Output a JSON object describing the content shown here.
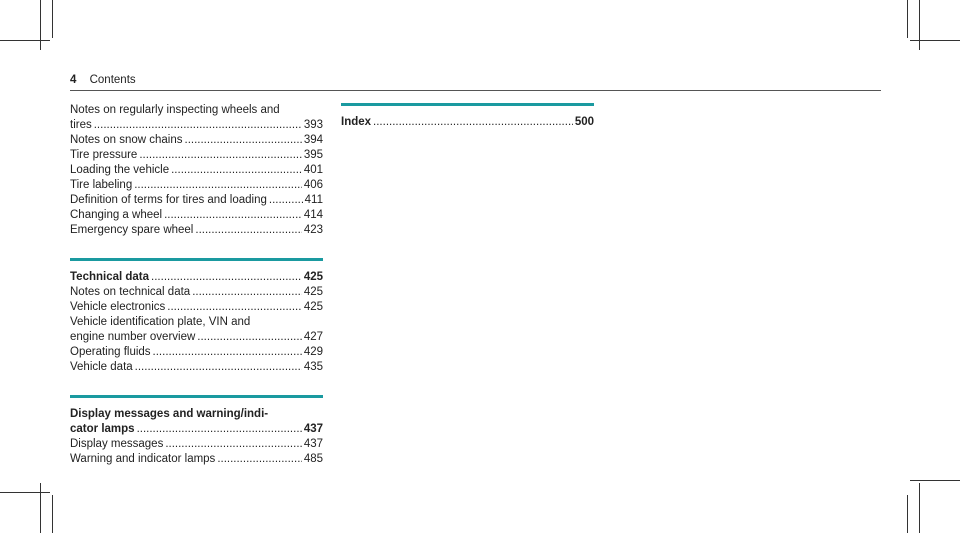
{
  "header": {
    "page_number": "4",
    "title": "Contents"
  },
  "left_column": {
    "intro_entries": [
      {
        "lines": [
          "Notes on regularly inspecting wheels and"
        ],
        "last": "tires",
        "page": "393"
      },
      {
        "lines": [],
        "last": "Notes on snow chains",
        "page": "394"
      },
      {
        "lines": [],
        "last": "Tire pressure",
        "page": "395"
      },
      {
        "lines": [],
        "last": "Loading the vehicle",
        "page": "401"
      },
      {
        "lines": [],
        "last": "Tire labeling",
        "page": "406"
      },
      {
        "lines": [],
        "last": "Definition of terms for tires and loading",
        "page": "411"
      },
      {
        "lines": [],
        "last": "Changing a wheel",
        "page": "414"
      },
      {
        "lines": [],
        "last": "Emergency spare wheel",
        "page": "423"
      }
    ],
    "technical": {
      "title": "Technical data",
      "page": "425",
      "entries": [
        {
          "lines": [],
          "last": "Notes on technical data",
          "page": "425"
        },
        {
          "lines": [],
          "last": "Vehicle electronics",
          "page": "425"
        },
        {
          "lines": [
            "Vehicle identification plate, VIN and"
          ],
          "last": "engine number overview",
          "page": "427"
        },
        {
          "lines": [],
          "last": "Operating fluids",
          "page": "429"
        },
        {
          "lines": [],
          "last": "Vehicle data",
          "page": "435"
        }
      ]
    },
    "display": {
      "title_line1": "Display messages and warning/indi-",
      "title_line2": "cator lamps",
      "page": "437",
      "entries": [
        {
          "lines": [],
          "last": "Display messages",
          "page": "437"
        },
        {
          "lines": [],
          "last": "Warning and indicator lamps",
          "page": "485"
        }
      ]
    }
  },
  "right_column": {
    "index": {
      "title": "Index",
      "page": "500"
    }
  },
  "colors": {
    "accent": "#1a9aa0",
    "text": "#222222"
  }
}
